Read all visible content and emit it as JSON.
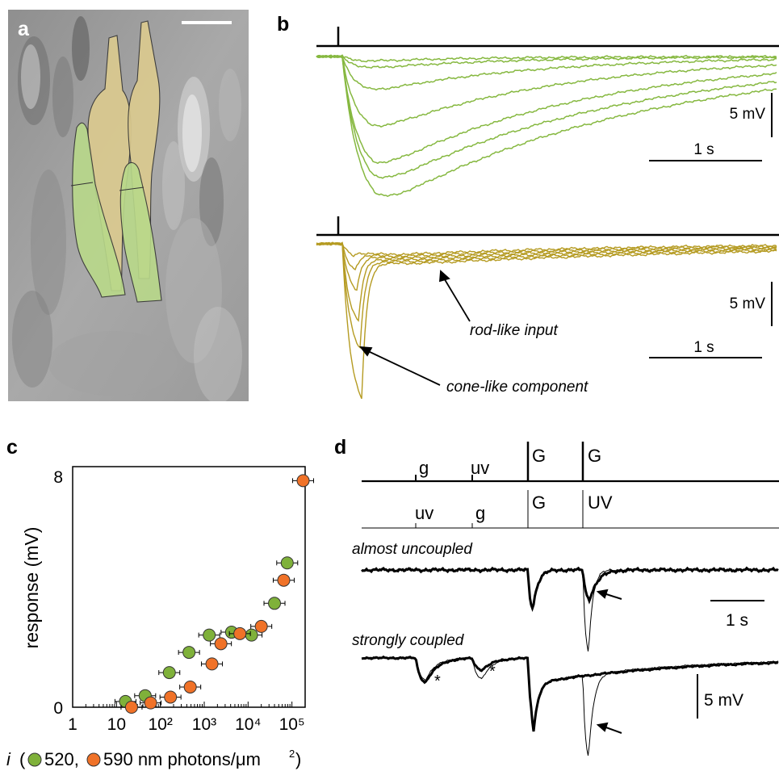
{
  "panels": {
    "a": {
      "label": "a"
    },
    "b": {
      "label": "b",
      "scale_top": {
        "volt": "5 mV",
        "time": "1 s"
      },
      "scale_bottom": {
        "volt": "5 mV",
        "time": "1 s"
      },
      "annotations": {
        "rod": "rod-like input",
        "cone": "cone-like component"
      }
    },
    "c": {
      "label": "c"
    },
    "d": {
      "label": "d",
      "stim_row1": [
        "g",
        "uv",
        "G",
        "G"
      ],
      "stim_row2": [
        "uv",
        "g",
        "G",
        "UV"
      ],
      "trace_labels": {
        "uncoupled": "almost uncoupled",
        "coupled": "strongly coupled"
      },
      "scale_time": "1 s",
      "scale_volt": "5 mV",
      "asterisk": "*"
    }
  },
  "colors": {
    "green": "#7fb13a",
    "orange": "#f07228",
    "olive": "#b59b22",
    "trace_green": "#86b840",
    "cone_fill": "#dccb8f",
    "rod_fill": "#b9d98a"
  },
  "chart_data": {
    "type": "scatter",
    "xscale": "log",
    "xlim": [
      1,
      200000
    ],
    "ylim": [
      0,
      8
    ],
    "ylabel": "response (mV)",
    "xtick_labels": [
      "1",
      "10",
      "10²",
      "10³",
      "10⁴",
      "10⁵"
    ],
    "ytick_labels": [
      "0",
      "8"
    ],
    "xlabel_parts": {
      "var": "i",
      "open": "(",
      "s1": "520,",
      "s2": "590 nm photons/μm",
      "sup": "2",
      "close": ")"
    },
    "series": [
      {
        "name": "520",
        "color": "#7fb13a",
        "x": [
          16,
          45,
          160,
          450,
          1300,
          4200,
          12000,
          40000,
          78000
        ],
        "y": [
          0.2,
          0.4,
          1.2,
          1.9,
          2.5,
          2.6,
          2.5,
          3.6,
          5.0
        ]
      },
      {
        "name": "590",
        "color": "#f07228",
        "x": [
          22,
          60,
          170,
          480,
          1500,
          2400,
          6500,
          20000,
          65000,
          180000
        ],
        "y": [
          0.0,
          0.15,
          0.35,
          0.7,
          1.5,
          2.2,
          2.55,
          2.8,
          4.4,
          7.85
        ]
      }
    ]
  }
}
